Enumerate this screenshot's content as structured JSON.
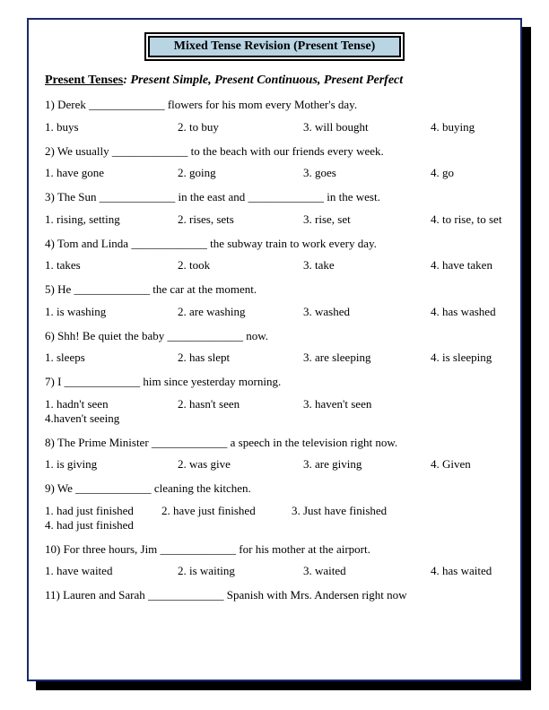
{
  "title": "Mixed Tense Revision (Present Tense)",
  "subtitle_underlined": "Present Tenses",
  "subtitle_italic": "Present Simple, Present Continuous, Present Perfect",
  "blank": "_____________",
  "questions": [
    {
      "n": "1",
      "pre": "Derek ",
      "post": " flowers for his mom every Mother's day.",
      "opts": [
        "1. buys",
        "2. to buy",
        "3. will bought",
        "4. buying"
      ]
    },
    {
      "n": "2",
      "pre": "We usually ",
      "post": " to the beach with our friends every week.",
      "opts": [
        "1. have gone",
        "2. going",
        "3. goes",
        "4. go"
      ]
    },
    {
      "n": "3",
      "pre": "The Sun ",
      "mid": " in the east and ",
      "post": " in the west.",
      "opts": [
        "1. rising, setting",
        "2. rises, sets",
        "3. rise, set",
        "4. to rise, to set"
      ]
    },
    {
      "n": "4",
      "pre": "Tom and Linda ",
      "post": " the subway train to work every day.",
      "opts": [
        "1. takes",
        "2. took",
        "3. take",
        "4. have taken"
      ]
    },
    {
      "n": "5",
      "pre": "He ",
      "post": " the car at the moment.",
      "opts": [
        "1. is washing",
        "2. are washing",
        "3. washed",
        "4. has washed"
      ]
    },
    {
      "n": "6",
      "pre": "Shh! Be quiet the baby ",
      "post": " now.",
      "opts": [
        "1. sleeps",
        "2. has slept",
        "3. are sleeping",
        "4. is sleeping"
      ]
    },
    {
      "n": "7",
      "pre": "I ",
      "post": " him since yesterday morning.",
      "opts": [
        "1. hadn't seen",
        "2. hasn't seen",
        "3. haven't seen",
        "4.haven't seeing"
      ],
      "wrap": true
    },
    {
      "n": "8",
      "pre": "The Prime Minister ",
      "post": " a speech in the television right now.",
      "opts": [
        "1. is giving",
        "2. was give",
        "3. are giving",
        "4. Given"
      ]
    },
    {
      "n": "9",
      "pre": "We ",
      "post": " cleaning the kitchen.",
      "opts": [
        "1. had just finished",
        "2. have just finished",
        "3. Just have finished",
        "4. had just finished"
      ],
      "wrap": true,
      "cls": "opts-9"
    },
    {
      "n": "10",
      "pre": "For three hours, Jim ",
      "post": " for his mother at the airport.",
      "opts": [
        "1. have waited",
        "2. is waiting",
        "3. waited",
        "4. has waited"
      ]
    },
    {
      "n": "11",
      "pre": "Lauren and Sarah ",
      "post": " Spanish with Mrs. Andersen right now",
      "opts": null
    }
  ]
}
